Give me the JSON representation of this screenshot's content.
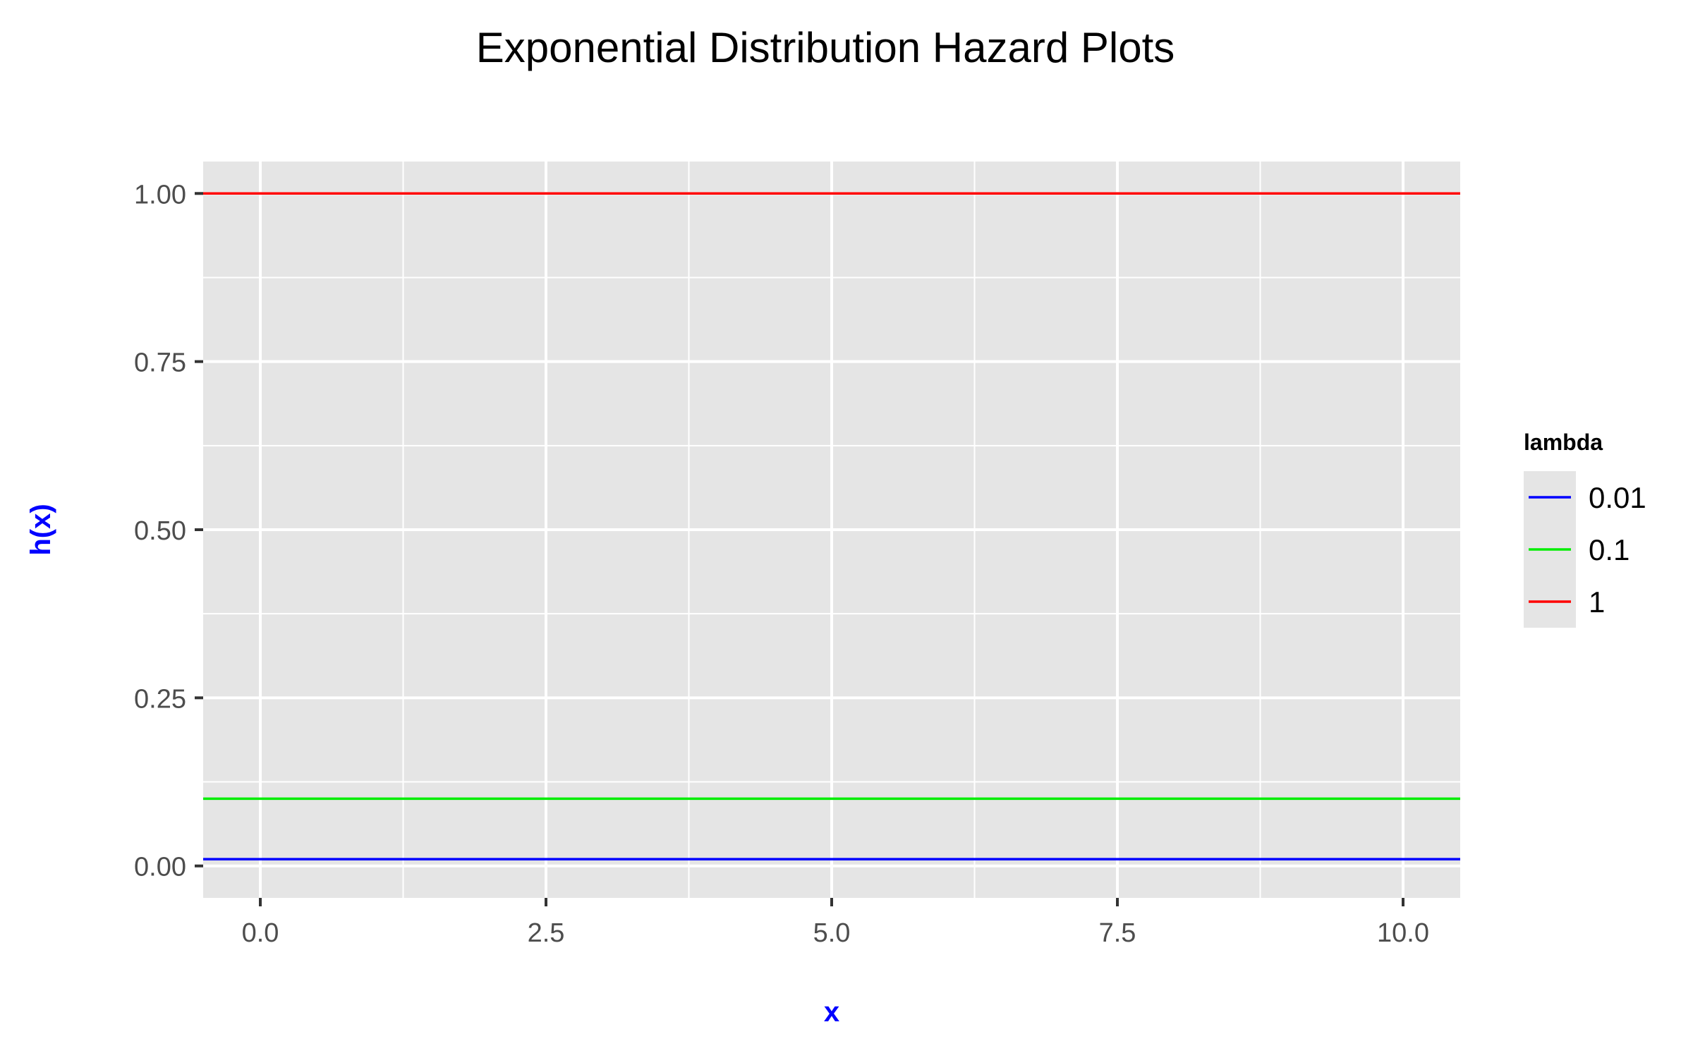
{
  "chart_data": {
    "type": "line",
    "title": "Exponential Distribution Hazard Plots",
    "xlabel": "x",
    "ylabel": "h(x)",
    "label_color": "#0000ff",
    "xlim": [
      -0.5,
      10.5
    ],
    "ylim": [
      -0.0475,
      1.0475
    ],
    "x_ticks": [
      0,
      2.5,
      5,
      7.5,
      10
    ],
    "x_tick_labels": [
      "0.0",
      "2.5",
      "5.0",
      "7.5",
      "10.0"
    ],
    "y_ticks": [
      0,
      0.25,
      0.5,
      0.75,
      1
    ],
    "y_tick_labels": [
      "0.00",
      "0.25",
      "0.50",
      "0.75",
      "1.00"
    ],
    "grid": true,
    "panel_background": "#e5e5e5",
    "legend": {
      "title": "lambda",
      "position": "right"
    },
    "series": [
      {
        "name": "0.01",
        "color": "#0000ff",
        "x": [
          0,
          10
        ],
        "values": [
          0.01,
          0.01
        ]
      },
      {
        "name": "0.1",
        "color": "#00ee00",
        "x": [
          0,
          10
        ],
        "values": [
          0.1,
          0.1
        ]
      },
      {
        "name": "1",
        "color": "#ff0000",
        "x": [
          0,
          10
        ],
        "values": [
          1,
          1
        ]
      }
    ]
  }
}
